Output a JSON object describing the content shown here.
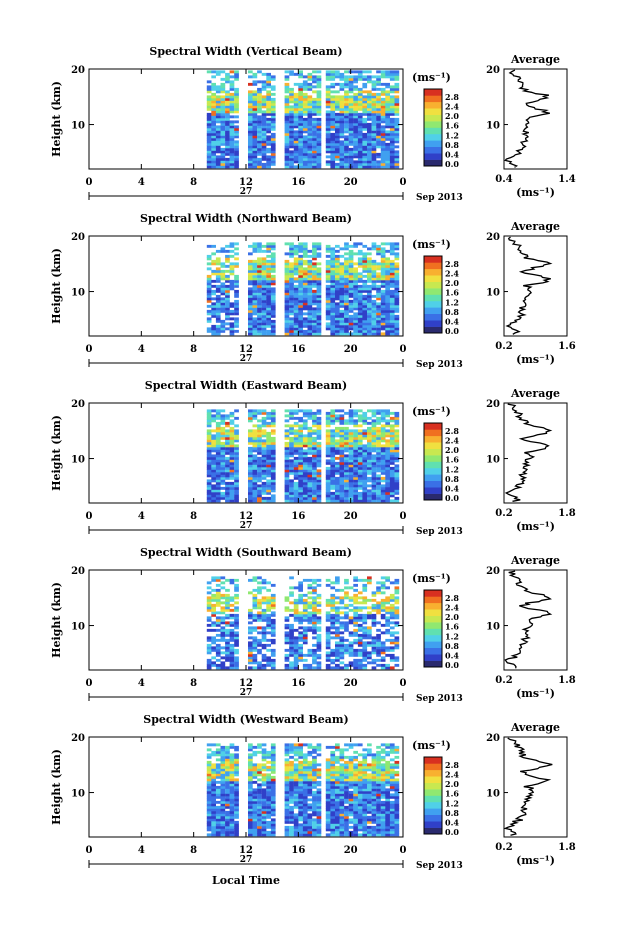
{
  "chart_data": [
    {
      "type": "heatmap",
      "title": "Spectral Width (Vertical Beam)",
      "ylabel": "Height (km)",
      "xlabel": "",
      "x_ticks": [
        "0",
        "4",
        "8",
        "12",
        "16",
        "20",
        "0"
      ],
      "y_ticks": [
        "20",
        "10"
      ],
      "date_left": "27",
      "date_right": "Sep 2013",
      "colorbar": {
        "label": "(ms⁻¹)",
        "ticks": [
          "2.8",
          "2.4",
          "2.0",
          "1.6",
          "1.2",
          "0.8",
          "0.4",
          "0.0"
        ]
      },
      "profile": {
        "title": "Average",
        "xlabel": "(ms⁻¹)",
        "x_ticks": [
          "0.4",
          "1.4"
        ],
        "xlim": [
          0.4,
          1.4
        ],
        "y_ticks": [
          "20",
          "10"
        ],
        "ylim": [
          2,
          20
        ]
      }
    },
    {
      "type": "heatmap",
      "title": "Spectral Width (Northward Beam)",
      "ylabel": "Height (km)",
      "xlabel": "",
      "x_ticks": [
        "0",
        "4",
        "8",
        "12",
        "16",
        "20",
        "0"
      ],
      "y_ticks": [
        "20",
        "10"
      ],
      "date_left": "27",
      "date_right": "Sep 2013",
      "colorbar": {
        "label": "(ms⁻¹)",
        "ticks": [
          "2.8",
          "2.4",
          "2.0",
          "1.6",
          "1.2",
          "0.8",
          "0.4",
          "0.0"
        ]
      },
      "profile": {
        "title": "Average",
        "xlabel": "(ms⁻¹)",
        "x_ticks": [
          "0.2",
          "1.6"
        ],
        "xlim": [
          0.2,
          1.6
        ],
        "y_ticks": [
          "20",
          "10"
        ],
        "ylim": [
          2,
          20
        ]
      }
    },
    {
      "type": "heatmap",
      "title": "Spectral Width (Eastward Beam)",
      "ylabel": "Height (km)",
      "xlabel": "",
      "x_ticks": [
        "0",
        "4",
        "8",
        "12",
        "16",
        "20",
        "0"
      ],
      "y_ticks": [
        "20",
        "10"
      ],
      "date_left": "27",
      "date_right": "Sep 2013",
      "colorbar": {
        "label": "(ms⁻¹)",
        "ticks": [
          "2.8",
          "2.4",
          "2.0",
          "1.6",
          "1.2",
          "0.8",
          "0.4",
          "0.0"
        ]
      },
      "profile": {
        "title": "Average",
        "xlabel": "(ms⁻¹)",
        "x_ticks": [
          "0.2",
          "1.8"
        ],
        "xlim": [
          0.2,
          1.8
        ],
        "y_ticks": [
          "20",
          "10"
        ],
        "ylim": [
          2,
          20
        ]
      }
    },
    {
      "type": "heatmap",
      "title": "Spectral Width (Southward Beam)",
      "ylabel": "Height (km)",
      "xlabel": "",
      "x_ticks": [
        "0",
        "4",
        "8",
        "12",
        "16",
        "20",
        "0"
      ],
      "y_ticks": [
        "20",
        "10"
      ],
      "date_left": "27",
      "date_right": "Sep 2013",
      "colorbar": {
        "label": "(ms⁻¹)",
        "ticks": [
          "2.8",
          "2.4",
          "2.0",
          "1.6",
          "1.2",
          "0.8",
          "0.4",
          "0.0"
        ]
      },
      "profile": {
        "title": "Average",
        "xlabel": "(ms⁻¹)",
        "x_ticks": [
          "0.2",
          "1.8"
        ],
        "xlim": [
          0.2,
          1.8
        ],
        "y_ticks": [
          "20",
          "10"
        ],
        "ylim": [
          2,
          20
        ]
      }
    },
    {
      "type": "heatmap",
      "title": "Spectral Width (Westward Beam)",
      "ylabel": "Height (km)",
      "xlabel": "Local Time",
      "x_ticks": [
        "0",
        "4",
        "8",
        "12",
        "16",
        "20",
        "0"
      ],
      "y_ticks": [
        "20",
        "10"
      ],
      "date_left": "27",
      "date_right": "Sep 2013",
      "colorbar": {
        "label": "(ms⁻¹)",
        "ticks": [
          "2.8",
          "2.4",
          "2.0",
          "1.6",
          "1.2",
          "0.8",
          "0.4",
          "0.0"
        ]
      },
      "profile": {
        "title": "Average",
        "xlabel": "(ms⁻¹)",
        "x_ticks": [
          "0.2",
          "1.8"
        ],
        "xlim": [
          0.2,
          1.8
        ],
        "y_ticks": [
          "20",
          "10"
        ],
        "ylim": [
          2,
          20
        ]
      }
    }
  ],
  "colors": {
    "colormap": [
      "#2a2a6e",
      "#3040c8",
      "#3a70e6",
      "#40a0f0",
      "#50d0e8",
      "#60e0b0",
      "#90e870",
      "#c8e850",
      "#f0e040",
      "#f8b030",
      "#f07020",
      "#d83020"
    ]
  }
}
